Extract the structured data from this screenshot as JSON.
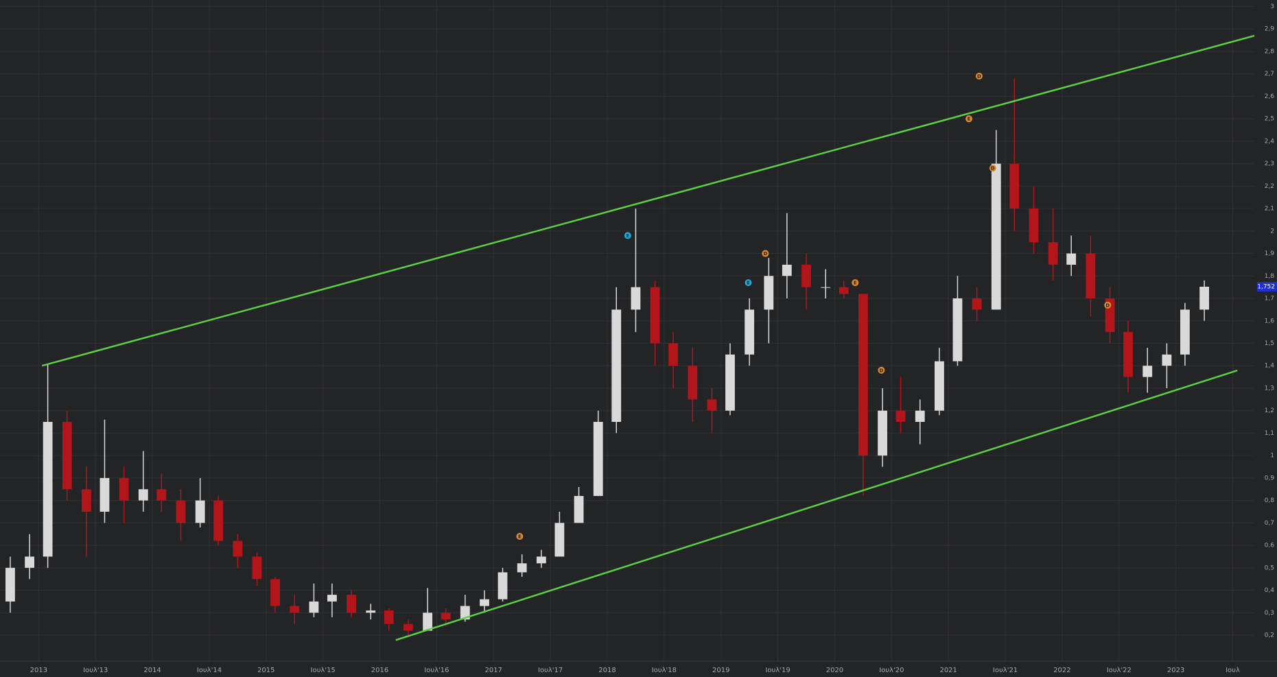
{
  "chart_data": {
    "type": "candlestick",
    "up_color": "#d9d9d9",
    "down_color": "#b3161a",
    "grid": true,
    "xlim": [
      2012.66,
      2023.69
    ],
    "ylim": [
      0.084,
      3.029
    ],
    "xticks": [
      2013,
      {
        "value": 2013.5,
        "label": "Ιουλ'13"
      },
      2014,
      {
        "value": 2014.5,
        "label": "Ιουλ'14"
      },
      2015,
      {
        "value": 2015.5,
        "label": "Ιουλ'15"
      },
      2016,
      {
        "value": 2016.5,
        "label": "Ιουλ'16"
      },
      2017,
      {
        "value": 2017.5,
        "label": "Ιουλ'17"
      },
      2018,
      {
        "value": 2018.5,
        "label": "Ιουλ'18"
      },
      2019,
      {
        "value": 2019.5,
        "label": "Ιουλ'19"
      },
      2020,
      {
        "value": 2020.5,
        "label": "Ιουλ'20"
      },
      2021,
      {
        "value": 2021.5,
        "label": "Ιουλ'21"
      },
      2022,
      {
        "value": 2022.5,
        "label": "Ιουλ'22"
      },
      2023,
      {
        "value": 2023.5,
        "label": "Ιουλ"
      }
    ],
    "yticks": [
      {
        "value": 0.2,
        "label": "0,2"
      },
      {
        "value": 0.3,
        "label": "0,3"
      },
      {
        "value": 0.4,
        "label": "0,4"
      },
      {
        "value": 0.5,
        "label": "0,5"
      },
      {
        "value": 0.6,
        "label": "0,6"
      },
      {
        "value": 0.7,
        "label": "0,7"
      },
      {
        "value": 0.8,
        "label": "0,8"
      },
      {
        "value": 0.9,
        "label": "0,9"
      },
      1,
      {
        "value": 1.1,
        "label": "1,1"
      },
      {
        "value": 1.2,
        "label": "1,2"
      },
      {
        "value": 1.3,
        "label": "1,3"
      },
      {
        "value": 1.4,
        "label": "1,4"
      },
      {
        "value": 1.5,
        "label": "1,5"
      },
      {
        "value": 1.6,
        "label": "1,6"
      },
      {
        "value": 1.7,
        "label": "1,7"
      },
      {
        "value": 1.8,
        "label": "1,8"
      },
      {
        "value": 1.9,
        "label": "1,9"
      },
      2,
      {
        "value": 2.1,
        "label": "2,1"
      },
      {
        "value": 2.2,
        "label": "2,2"
      },
      {
        "value": 2.3,
        "label": "2,3"
      },
      {
        "value": 2.4,
        "label": "2,4"
      },
      {
        "value": 2.5,
        "label": "2,5"
      },
      {
        "value": 2.6,
        "label": "2,6"
      },
      {
        "value": 2.7,
        "label": "2,7"
      },
      {
        "value": 2.8,
        "label": "2,8"
      },
      {
        "value": 2.9,
        "label": "2,9"
      },
      3
    ],
    "x": [
      2012.75,
      2012.92,
      2013.08,
      2013.25,
      2013.42,
      2013.58,
      2013.75,
      2013.92,
      2014.08,
      2014.25,
      2014.42,
      2014.58,
      2014.75,
      2014.92,
      2015.08,
      2015.25,
      2015.42,
      2015.58,
      2015.75,
      2015.92,
      2016.08,
      2016.25,
      2016.42,
      2016.58,
      2016.75,
      2016.92,
      2017.08,
      2017.25,
      2017.42,
      2017.58,
      2017.75,
      2017.92,
      2018.08,
      2018.25,
      2018.42,
      2018.58,
      2018.75,
      2018.92,
      2019.08,
      2019.25,
      2019.42,
      2019.58,
      2019.75,
      2019.92,
      2020.08,
      2020.25,
      2020.42,
      2020.58,
      2020.75,
      2020.92,
      2021.08,
      2021.25,
      2021.42,
      2021.58,
      2021.75,
      2021.92,
      2022.08,
      2022.25,
      2022.42,
      2022.58,
      2022.75,
      2022.92,
      2023.08,
      2023.25
    ],
    "open": [
      0.35,
      0.5,
      0.55,
      1.15,
      0.85,
      0.75,
      0.9,
      0.8,
      0.85,
      0.8,
      0.7,
      0.8,
      0.62,
      0.55,
      0.45,
      0.33,
      0.3,
      0.35,
      0.38,
      0.3,
      0.31,
      0.25,
      0.22,
      0.3,
      0.27,
      0.33,
      0.36,
      0.48,
      0.52,
      0.55,
      0.7,
      0.82,
      1.15,
      1.65,
      1.75,
      1.5,
      1.4,
      1.25,
      1.2,
      1.45,
      1.65,
      1.8,
      1.85,
      1.75,
      1.75,
      1.72,
      1.0,
      1.2,
      1.15,
      1.2,
      1.42,
      1.7,
      1.65,
      2.3,
      2.1,
      1.95,
      1.85,
      1.9,
      1.7,
      1.55,
      1.35,
      1.4,
      1.45,
      1.65
    ],
    "high": [
      0.55,
      0.65,
      1.41,
      1.2,
      0.95,
      1.16,
      0.95,
      1.02,
      0.92,
      0.85,
      0.9,
      0.82,
      0.65,
      0.57,
      0.46,
      0.38,
      0.43,
      0.43,
      0.4,
      0.34,
      0.32,
      0.27,
      0.41,
      0.32,
      0.38,
      0.4,
      0.5,
      0.56,
      0.58,
      0.75,
      0.86,
      1.2,
      1.75,
      2.1,
      1.78,
      1.55,
      1.48,
      1.3,
      1.5,
      1.7,
      1.88,
      2.08,
      1.9,
      1.83,
      1.78,
      1.72,
      1.3,
      1.35,
      1.25,
      1.48,
      1.8,
      1.75,
      2.45,
      2.68,
      2.2,
      2.1,
      1.98,
      1.98,
      1.75,
      1.6,
      1.48,
      1.5,
      1.68,
      1.78
    ],
    "low": [
      0.3,
      0.45,
      0.5,
      0.8,
      0.55,
      0.7,
      0.7,
      0.75,
      0.75,
      0.62,
      0.68,
      0.6,
      0.5,
      0.42,
      0.3,
      0.25,
      0.28,
      0.28,
      0.28,
      0.27,
      0.22,
      0.19,
      0.22,
      0.24,
      0.26,
      0.3,
      0.35,
      0.46,
      0.5,
      0.55,
      0.7,
      0.82,
      1.1,
      1.55,
      1.4,
      1.3,
      1.15,
      1.1,
      1.18,
      1.4,
      1.5,
      1.7,
      1.65,
      1.7,
      1.7,
      0.82,
      0.95,
      1.1,
      1.05,
      1.18,
      1.4,
      1.6,
      1.65,
      2.0,
      1.9,
      1.78,
      1.8,
      1.62,
      1.5,
      1.28,
      1.28,
      1.3,
      1.4,
      1.6
    ],
    "close": [
      0.5,
      0.55,
      1.15,
      0.85,
      0.75,
      0.9,
      0.8,
      0.85,
      0.8,
      0.7,
      0.8,
      0.62,
      0.55,
      0.45,
      0.33,
      0.3,
      0.35,
      0.38,
      0.3,
      0.31,
      0.25,
      0.22,
      0.3,
      0.27,
      0.33,
      0.36,
      0.48,
      0.52,
      0.55,
      0.7,
      0.82,
      1.15,
      1.65,
      1.75,
      1.5,
      1.4,
      1.25,
      1.2,
      1.45,
      1.65,
      1.8,
      1.85,
      1.75,
      1.75,
      1.72,
      1.0,
      1.2,
      1.15,
      1.2,
      1.42,
      1.7,
      1.65,
      2.3,
      2.1,
      1.95,
      1.85,
      1.9,
      1.7,
      1.55,
      1.35,
      1.4,
      1.45,
      1.65,
      1.752
    ],
    "trendlines": [
      {
        "color": "#5ccf45",
        "x": [
          2013.03,
          2023.69
        ],
        "y": [
          1.4,
          2.87
        ]
      },
      {
        "color": "#5ccf45",
        "x": [
          2016.14,
          2023.54
        ],
        "y": [
          0.178,
          1.379
        ]
      }
    ],
    "events": [
      {
        "label": "D",
        "color": "#e08a2e",
        "x": 2021.27,
        "y": 2.69
      },
      {
        "label": "E",
        "color": "#e08a2e",
        "x": 2021.18,
        "y": 2.5
      },
      {
        "label": "D",
        "color": "#e08a2e",
        "x": 2021.39,
        "y": 2.28
      },
      {
        "label": "E",
        "color": "#2aa8d8",
        "x": 2018.18,
        "y": 1.98
      },
      {
        "label": "D",
        "color": "#e08a2e",
        "x": 2019.39,
        "y": 1.9
      },
      {
        "label": "E",
        "color": "#2aa8d8",
        "x": 2019.24,
        "y": 1.77
      },
      {
        "label": "E",
        "color": "#e08a2e",
        "x": 2020.18,
        "y": 1.77
      },
      {
        "label": "D",
        "color": "#e08a2e",
        "x": 2020.41,
        "y": 1.38
      },
      {
        "label": "D",
        "color": "#e08a2e",
        "x": 2022.4,
        "y": 1.67
      },
      {
        "label": "E",
        "color": "#e08a2e",
        "x": 2017.23,
        "y": 0.64
      }
    ],
    "last_price": {
      "value": 1.752,
      "label": "1,752",
      "color": "#1f2fd0"
    }
  }
}
